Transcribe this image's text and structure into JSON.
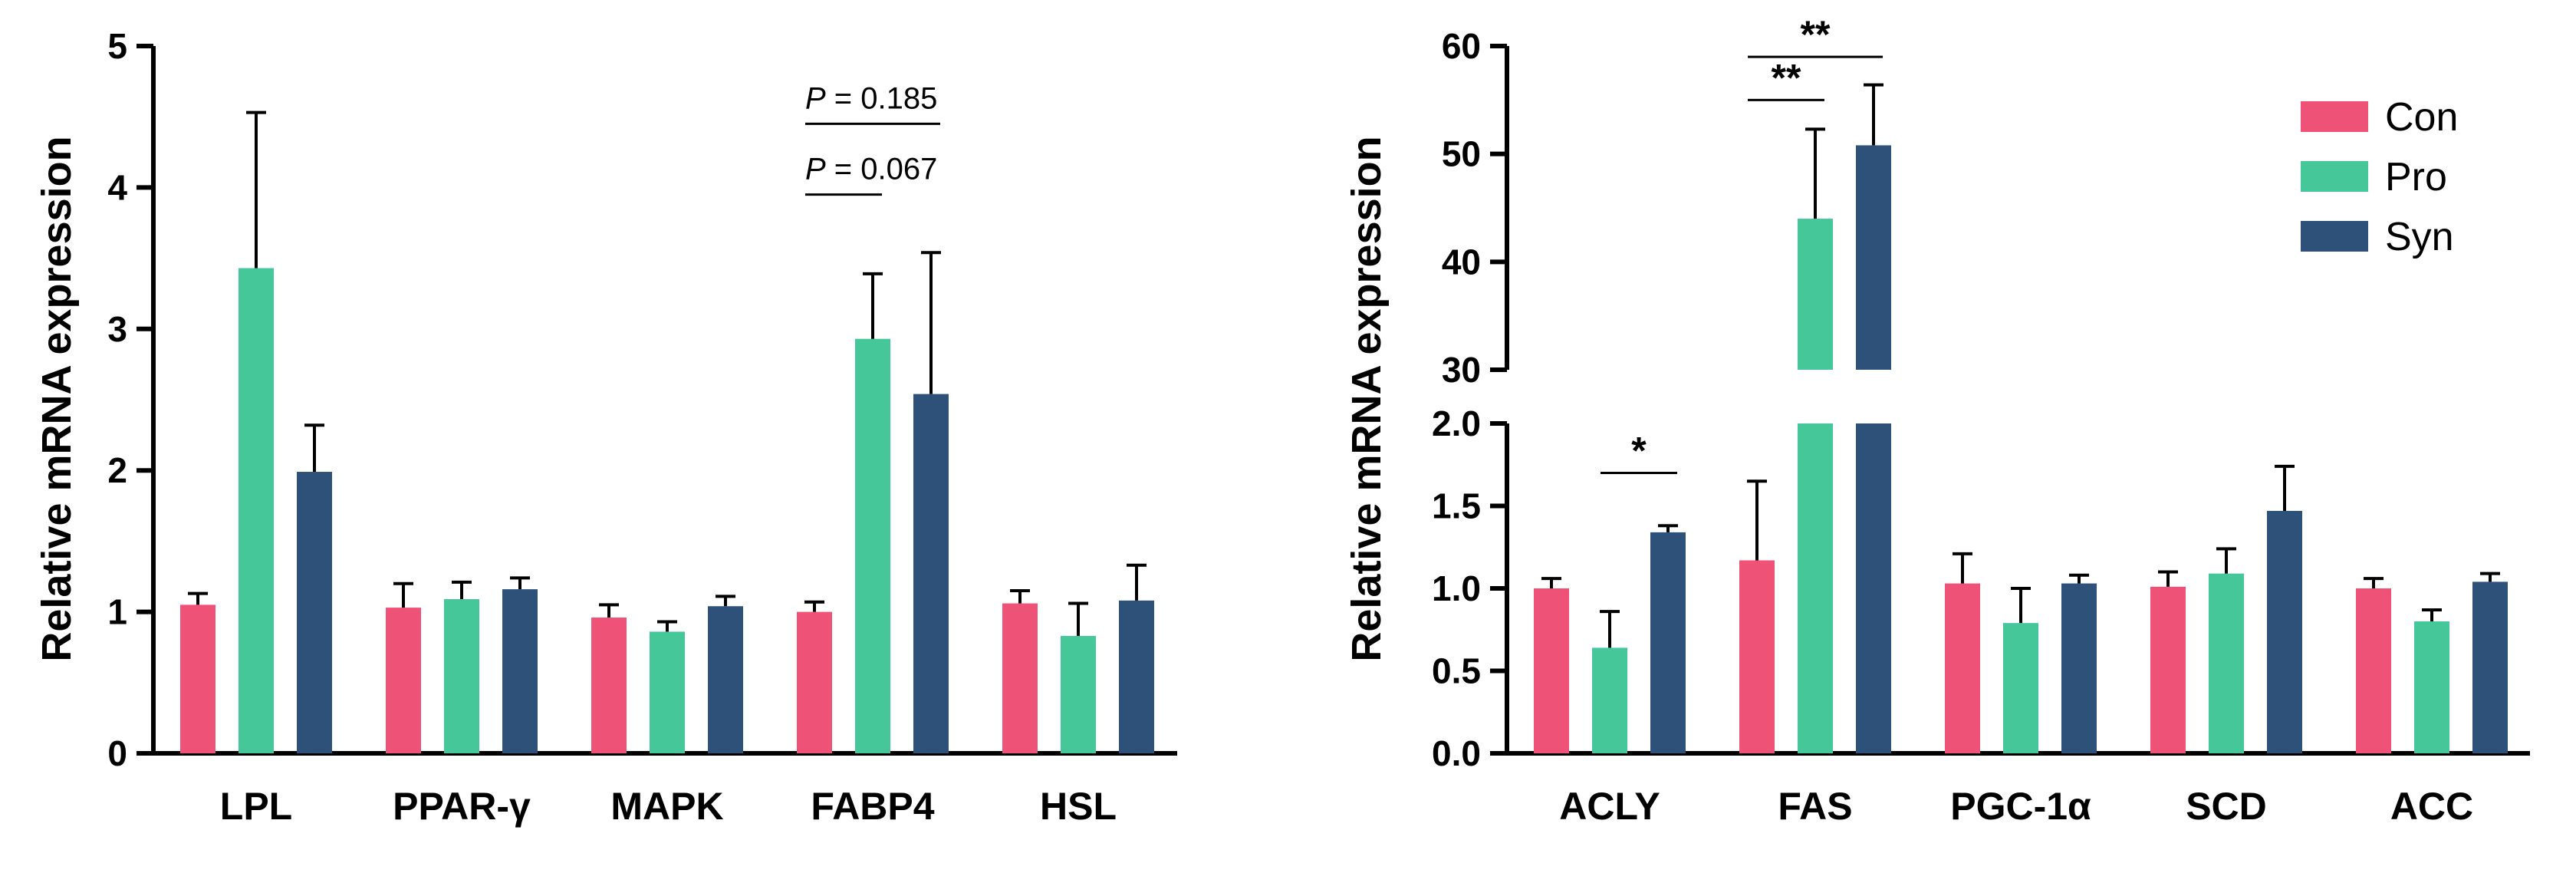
{
  "colors": {
    "Con": "#ef5277",
    "Pro": "#45c79a",
    "Syn": "#2e5179"
  },
  "chart_data": [
    {
      "type": "bar",
      "ylabel": "Relative mRNA expression",
      "xlabel": "",
      "title": "",
      "ylim": [
        0,
        5
      ],
      "yticks": [
        "0",
        "1",
        "2",
        "3",
        "4",
        "5"
      ],
      "categories": [
        "LPL",
        "PPAR-γ",
        "MAPK",
        "FABP4",
        "HSL"
      ],
      "series": [
        {
          "name": "Con",
          "values": [
            1.05,
            1.03,
            0.96,
            1.0,
            1.06
          ],
          "errors": [
            0.08,
            0.17,
            0.09,
            0.07,
            0.09
          ]
        },
        {
          "name": "Pro",
          "values": [
            3.43,
            1.09,
            0.86,
            2.93,
            0.83
          ],
          "errors": [
            1.1,
            0.12,
            0.07,
            0.46,
            0.23
          ]
        },
        {
          "name": "Syn",
          "values": [
            1.99,
            1.16,
            1.04,
            2.54,
            1.08
          ],
          "errors": [
            0.33,
            0.08,
            0.07,
            1.0,
            0.25
          ]
        }
      ],
      "annotations": [
        {
          "category": "FABP4",
          "from": "Con",
          "to": "Syn",
          "level": 4.45,
          "label": "P",
          "value": " = 0.185"
        },
        {
          "category": "FABP4",
          "from": "Con",
          "to": "Pro",
          "level": 3.95,
          "label": "P",
          "value": " = 0.067"
        }
      ]
    },
    {
      "type": "bar",
      "ylabel": "Relative mRNA expression",
      "xlabel": "",
      "title": "",
      "broken_axis": true,
      "lower_ylim": [
        0,
        2
      ],
      "upper_ylim": [
        30,
        60
      ],
      "lower_yticks": [
        "0.0",
        "0.5",
        "1.0",
        "1.5",
        "2.0"
      ],
      "upper_yticks": [
        "30",
        "40",
        "50",
        "60"
      ],
      "categories": [
        "ACLY",
        "FAS",
        "PGC-1α",
        "SCD",
        "ACC"
      ],
      "series": [
        {
          "name": "Con",
          "values": [
            1.0,
            1.17,
            1.03,
            1.01,
            1.0
          ],
          "errors": [
            0.06,
            0.48,
            0.18,
            0.09,
            0.06
          ]
        },
        {
          "name": "Pro",
          "values": [
            0.64,
            44.0,
            0.79,
            1.09,
            0.8
          ],
          "errors": [
            0.22,
            8.3,
            0.21,
            0.15,
            0.07
          ]
        },
        {
          "name": "Syn",
          "values": [
            1.34,
            50.8,
            1.03,
            1.47,
            1.04
          ],
          "errors": [
            0.04,
            5.6,
            0.05,
            0.27,
            0.05
          ]
        }
      ],
      "annotations": [
        {
          "category": "ACLY",
          "from": "Pro",
          "to": "Syn",
          "level": 1.7,
          "axis": "lower",
          "label": "*"
        },
        {
          "category": "FAS",
          "from": "Con",
          "to": "Pro",
          "level": 55.0,
          "axis": "upper",
          "label": "**"
        },
        {
          "category": "FAS",
          "from": "Con",
          "to": "Syn",
          "level": 59.0,
          "axis": "upper",
          "label": "**"
        }
      ],
      "legend": {
        "position": "top-right",
        "entries": [
          "Con",
          "Pro",
          "Syn"
        ]
      }
    }
  ]
}
